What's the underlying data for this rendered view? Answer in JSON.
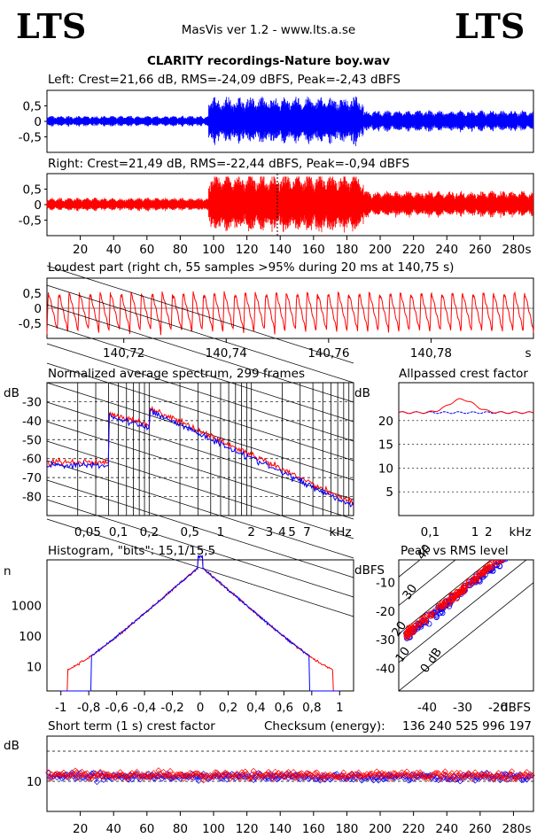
{
  "header": {
    "logo_left": "LTS",
    "logo_right": "LTS",
    "app_title": "MasVis ver 1.2 - www.lts.a.se",
    "file_title": "CLARITY recordings-Nature boy.wav"
  },
  "colors": {
    "left": "#0000ff",
    "right": "#ff0000",
    "grid": "#000000"
  },
  "charts": {
    "left_wave": {
      "type": "line",
      "title": "Left: Crest=21,66 dB, RMS=-24,09 dBFS, Peak=-2,43 dBFS",
      "yticks": [
        "0,5",
        "0",
        "-0,5"
      ],
      "ylim": [
        -1,
        1
      ]
    },
    "right_wave": {
      "type": "line",
      "title": "Right: Crest=21,49 dB, RMS=-22,44 dBFS, Peak=-0,94 dBFS",
      "yticks": [
        "0,5",
        "0",
        "-0,5"
      ],
      "ylim": [
        -1,
        1
      ],
      "xticks": [
        "20",
        "40",
        "60",
        "80",
        "100",
        "120",
        "140",
        "160",
        "180",
        "200",
        "220",
        "240",
        "260",
        "280"
      ],
      "xunit": "s",
      "xlim": [
        0,
        292
      ]
    },
    "loudest": {
      "type": "line",
      "title": "Loudest part (right ch, 55 samples >95% during 20 ms at 140,75 s)",
      "yticks": [
        "0,5",
        "0",
        "-0,5"
      ],
      "xticks": [
        "140,72",
        "140,74",
        "140,76",
        "140,78"
      ],
      "xunit": "s",
      "xlim": [
        140.705,
        140.8
      ]
    },
    "spectrum": {
      "type": "line",
      "title": "Normalized average spectrum, 299 frames",
      "ylabel": "dB",
      "yticks": [
        "-30",
        "-40",
        "-50",
        "-60",
        "-70",
        "-80"
      ],
      "xticks": [
        "0,05",
        "0,1",
        "0,2",
        "0,5",
        "1",
        "2",
        "3",
        "4",
        "5",
        "7"
      ],
      "xunit": "kHz",
      "ylim": [
        -90,
        -20
      ]
    },
    "allpass": {
      "type": "line",
      "title": "Allpassed crest factor",
      "ylabel": "dB",
      "yticks": [
        "20",
        "15",
        "10",
        "5"
      ],
      "xticks": [
        "0,1",
        "1",
        "2"
      ],
      "xunit": "kHz",
      "ylim": [
        0,
        28
      ]
    },
    "histogram": {
      "type": "line",
      "title": "Histogram, \"bits\": 15,1/15,5",
      "ylabel": "n",
      "yticks": [
        "1000",
        "100",
        "10"
      ],
      "xticks": [
        "-1",
        "-0,8",
        "-0,6",
        "-0,4",
        "-0,2",
        "0",
        "0,2",
        "0,4",
        "0,6",
        "0,8",
        "1"
      ],
      "xlim": [
        -1.1,
        1.1
      ]
    },
    "peak_rms": {
      "type": "scatter",
      "title": "Peak vs RMS level",
      "ylabel": "dBFS",
      "yticks": [
        "-10",
        "-20",
        "-30",
        "-40"
      ],
      "xticks": [
        "-40",
        "-30",
        "-20"
      ],
      "xunit": "dBFS",
      "diag_labels": [
        "40",
        "30",
        "20",
        "10",
        "0 dB"
      ],
      "xlim": [
        -48,
        -10
      ],
      "ylim": [
        -48,
        -2
      ]
    },
    "crest_st": {
      "type": "scatter",
      "title": "Short term (1 s) crest factor",
      "checksum_label": "Checksum (energy):",
      "checksum_value": "136 240 525 996 197",
      "ylabel": "dB",
      "yticks": [
        "10"
      ],
      "xticks": [
        "20",
        "40",
        "60",
        "80",
        "100",
        "120",
        "140",
        "160",
        "180",
        "200",
        "220",
        "240",
        "260",
        "280"
      ],
      "xunit": "s",
      "xlim": [
        0,
        292
      ],
      "ylim": [
        0,
        25
      ]
    }
  }
}
